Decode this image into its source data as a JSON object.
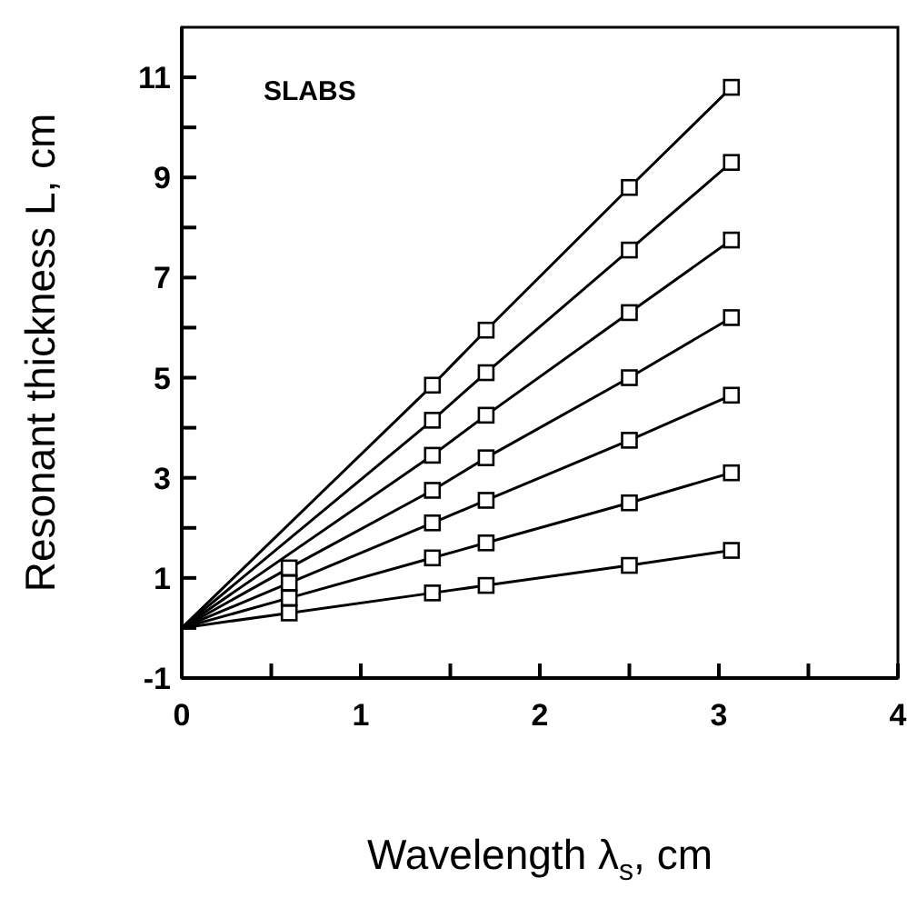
{
  "chart_data": {
    "type": "line",
    "xlabel": "Wavelength λ$_{s}$, cm",
    "ylabel": "Resonant thickness L, cm",
    "annotations": [
      "SLABS"
    ],
    "xlim": [
      0,
      4
    ],
    "xticks": [
      0,
      {
        "value": 0.5,
        "label": null
      },
      1,
      {
        "value": 1.5,
        "label": null
      },
      2,
      {
        "value": 2.5,
        "label": null
      },
      3,
      {
        "value": 3.5,
        "label": null
      },
      4
    ],
    "ylim": [
      -1,
      12
    ],
    "yticks": [
      -1,
      {
        "value": 0,
        "label": null
      },
      1,
      {
        "value": 2,
        "label": null
      },
      3,
      {
        "value": 4,
        "label": null
      },
      5,
      {
        "value": 6,
        "label": null
      },
      7,
      {
        "value": 8,
        "label": null
      },
      9,
      {
        "value": 10,
        "label": null
      },
      11
    ],
    "grid": false,
    "marker": "square",
    "line_style": "solid",
    "series": [
      {
        "color": "#000000",
        "x": [
          0,
          1.4,
          1.7,
          2.5,
          3.07
        ],
        "values": [
          0,
          4.85,
          5.95,
          8.8,
          10.8
        ]
      },
      {
        "color": "#000000",
        "x": [
          0,
          1.4,
          1.7,
          2.5,
          3.07
        ],
        "values": [
          0,
          4.15,
          5.1,
          7.55,
          9.3
        ]
      },
      {
        "color": "#000000",
        "x": [
          0,
          1.4,
          1.7,
          2.5,
          3.07
        ],
        "values": [
          0,
          3.45,
          4.25,
          6.3,
          7.75
        ]
      },
      {
        "color": "#000000",
        "x": [
          0,
          0.6,
          1.4,
          1.7,
          2.5,
          3.07
        ],
        "values": [
          0,
          1.2,
          2.75,
          3.4,
          5.0,
          6.2
        ]
      },
      {
        "color": "#000000",
        "x": [
          0,
          0.6,
          1.4,
          1.7,
          2.5,
          3.07
        ],
        "values": [
          0,
          0.9,
          2.1,
          2.55,
          3.75,
          4.65
        ]
      },
      {
        "color": "#000000",
        "x": [
          0,
          0.6,
          1.4,
          1.7,
          2.5,
          3.07
        ],
        "values": [
          0,
          0.6,
          1.4,
          1.7,
          2.5,
          3.1
        ]
      },
      {
        "color": "#000000",
        "x": [
          0,
          0.6,
          1.4,
          1.7,
          2.5,
          3.07
        ],
        "values": [
          0,
          0.3,
          0.7,
          0.85,
          1.25,
          1.55
        ]
      }
    ]
  }
}
